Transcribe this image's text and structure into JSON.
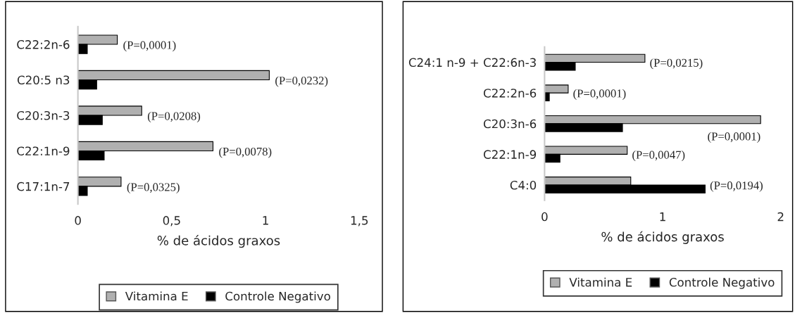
{
  "chart_data": [
    {
      "type": "bar",
      "orientation": "horizontal",
      "xlabel": "% de ácidos graxos",
      "categories": [
        "C22:2n-6",
        "C20:5 n3",
        "C20:3n-3",
        "C22:1n-9",
        "C17:1n-7"
      ],
      "xlim": [
        0,
        1.5
      ],
      "xticks": [
        0,
        {
          "value": 0.5,
          "label": "0,5"
        },
        1,
        {
          "value": 1.5,
          "label": "1,5"
        }
      ],
      "grid": false,
      "legend": "bottom",
      "series": [
        {
          "name": "Vitamina E",
          "color": "#b0b0b0",
          "values": [
            0.21,
            1.02,
            0.34,
            0.72,
            0.23
          ]
        },
        {
          "name": "Controle Negativo",
          "color": "#000000",
          "values": [
            0.05,
            0.1,
            0.13,
            0.14,
            0.05
          ]
        }
      ],
      "annotations": [
        "(P=0,0001)",
        "(P=0,0232)",
        "(P=0,0208)",
        "(P=0,0078)",
        "(P=0,0325)"
      ]
    },
    {
      "type": "bar",
      "orientation": "horizontal",
      "xlabel": "% de ácidos graxos",
      "categories": [
        "C24:1 n-9 + C22:6n-3",
        "C22:2n-6",
        "C20:3n-6",
        "C22:1n-9",
        "C4:0"
      ],
      "xlim": [
        0,
        2
      ],
      "xticks": [
        0,
        1,
        2
      ],
      "grid": false,
      "legend": "bottom",
      "series": [
        {
          "name": "Vitamina E",
          "color": "#b0b0b0",
          "values": [
            0.85,
            0.2,
            1.83,
            0.7,
            0.73
          ]
        },
        {
          "name": "Controle Negativo",
          "color": "#000000",
          "values": [
            0.26,
            0.04,
            0.66,
            0.13,
            1.36
          ]
        }
      ],
      "annotations": [
        "(P=0,0215)",
        "(P=0,0001)",
        "(P=0,0001)",
        "(P=0,0047)",
        "(P=0,0194)"
      ]
    }
  ]
}
